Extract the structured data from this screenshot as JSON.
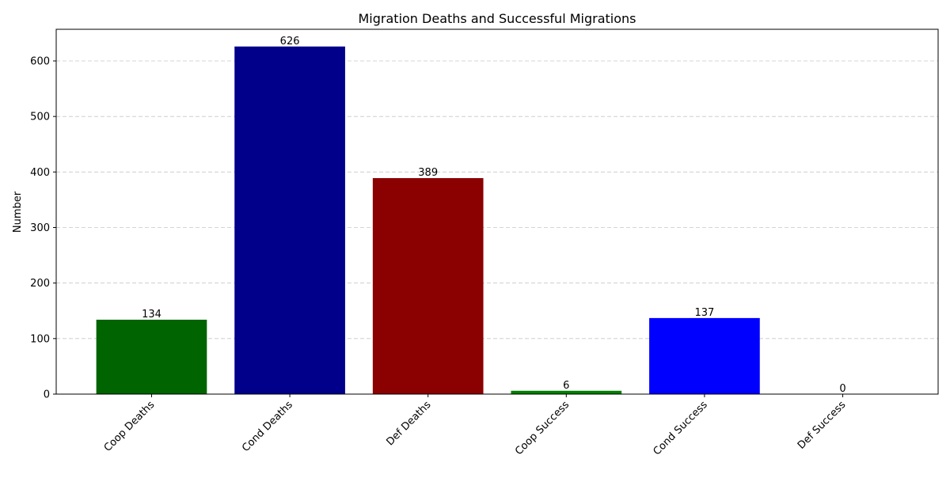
{
  "chart_data": {
    "type": "bar",
    "title": "Migration Deaths and Successful Migrations",
    "xlabel": "",
    "ylabel": "Number",
    "categories": [
      "Coop Deaths",
      "Cond Deaths",
      "Def Deaths",
      "Coop Success",
      "Cond Success",
      "Def Success"
    ],
    "values": [
      134,
      626,
      389,
      6,
      137,
      0
    ],
    "colors": [
      "#006400",
      "#00008b",
      "#8b0000",
      "#008000",
      "#0000ff",
      "#ff0000"
    ],
    "ylim": [
      0,
      657
    ],
    "yticks": [
      0,
      100,
      200,
      300,
      400,
      500,
      600
    ],
    "grid": "y-dashed",
    "legend": "none",
    "data_labels": [
      "134",
      "626",
      "389",
      "6",
      "137",
      "0"
    ]
  }
}
